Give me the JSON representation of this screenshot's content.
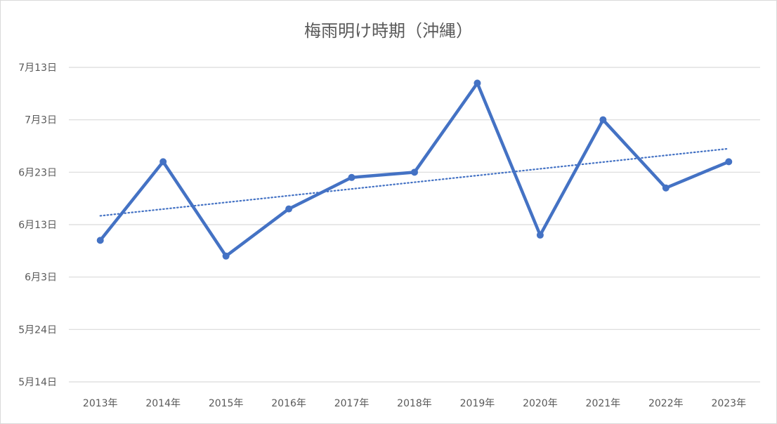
{
  "chart_data": {
    "type": "line",
    "title": "梅雨明け時期（沖縄）",
    "categories": [
      "2013年",
      "2014年",
      "2015年",
      "2016年",
      "2017年",
      "2018年",
      "2019年",
      "2020年",
      "2021年",
      "2022年",
      "2023年"
    ],
    "series": [
      {
        "values": [
          "2013-06-10",
          "2014-06-25",
          "2015-06-07",
          "2016-06-16",
          "2017-06-22",
          "2018-06-23",
          "2019-07-10",
          "2020-06-11",
          "2021-07-03",
          "2022-06-20",
          "2023-06-25"
        ],
        "color": "#4472c4",
        "markers": true
      }
    ],
    "trendline": {
      "type": "linear",
      "style": "dotted",
      "color": "#4472c4"
    },
    "y_ticks": [
      "5月14日",
      "5月24日",
      "6月3日",
      "6月13日",
      "6月23日",
      "7月3日",
      "7月13日"
    ],
    "ylim": [
      "2024-05-14",
      "2024-07-13"
    ],
    "grid": true,
    "legend": "none"
  }
}
